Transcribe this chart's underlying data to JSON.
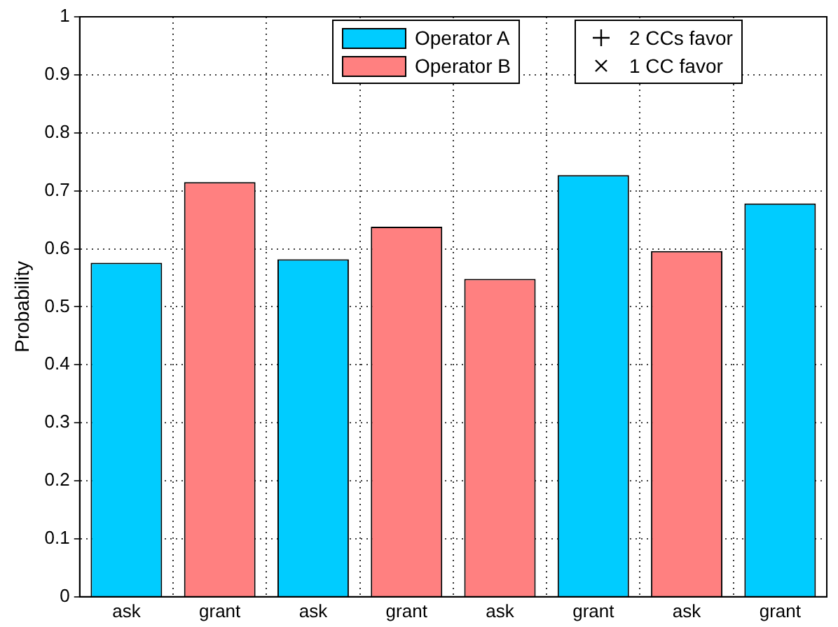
{
  "chart_data": {
    "type": "bar",
    "ylabel": "Probability",
    "categories": [
      "ask",
      "grant",
      "ask",
      "grant",
      "ask",
      "grant",
      "ask",
      "grant"
    ],
    "series": [
      {
        "name": "Operator A",
        "color": "#00ccff",
        "values": [
          0.576,
          null,
          0.582,
          null,
          null,
          0.727,
          null,
          0.678
        ]
      },
      {
        "name": "Operator B",
        "color": "#ff8080",
        "values": [
          null,
          0.715,
          null,
          0.638,
          0.548,
          null,
          0.596,
          null
        ]
      }
    ],
    "ylim": [
      0,
      1
    ],
    "yticks": [
      0,
      0.1,
      0.2,
      0.3,
      0.4,
      0.5,
      0.6,
      0.7,
      0.8,
      0.9,
      1
    ],
    "grid": true,
    "legend": "top right",
    "annotations": [
      "2 CCs favor",
      "1 CC favor"
    ]
  }
}
